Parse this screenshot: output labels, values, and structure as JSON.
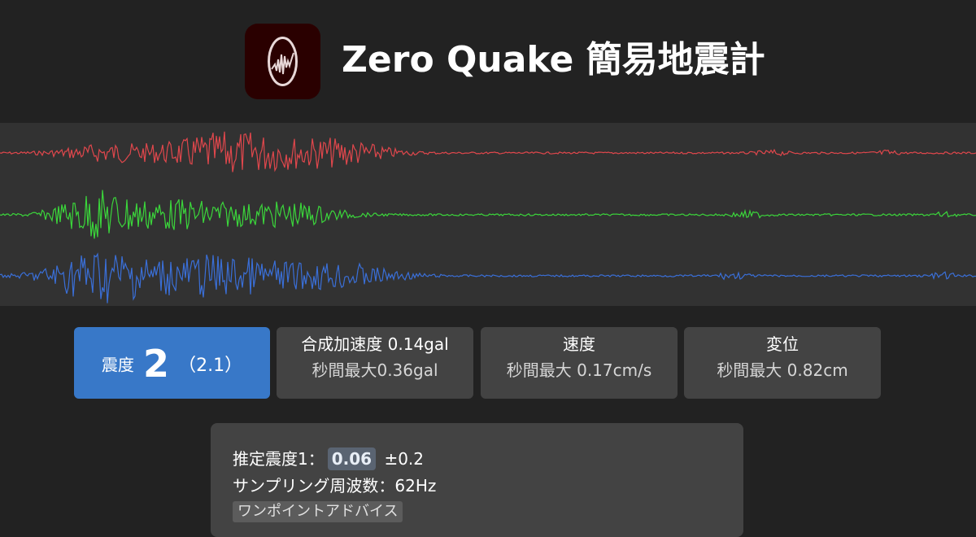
{
  "header": {
    "title": "Zero Quake 簡易地震計",
    "icon": "seismograph-app-icon"
  },
  "waveforms": {
    "channels": [
      {
        "name": "red-channel",
        "color": "#e0474c"
      },
      {
        "name": "green-channel",
        "color": "#3bd63b"
      },
      {
        "name": "blue-channel",
        "color": "#3a6fd8"
      }
    ],
    "background": "#323232"
  },
  "cards": {
    "intensity": {
      "label": "震度",
      "value": "2",
      "sub": "（2.1）",
      "color": "#3878c8"
    },
    "acceleration": {
      "title": "合成加速度 0.14gal",
      "sub": "秒間最大0.36gal"
    },
    "velocity": {
      "title": "速度",
      "sub": "秒間最大 0.17cm/s"
    },
    "displacement": {
      "title": "変位",
      "sub": "秒間最大 0.82cm"
    }
  },
  "info": {
    "estimated_label": "推定震度1：",
    "estimated_value": "0.06",
    "estimated_error": "±0.2",
    "sampling_text": "サンプリング周波数：62Hz",
    "advice_label": "ワンポイントアドバイス"
  }
}
